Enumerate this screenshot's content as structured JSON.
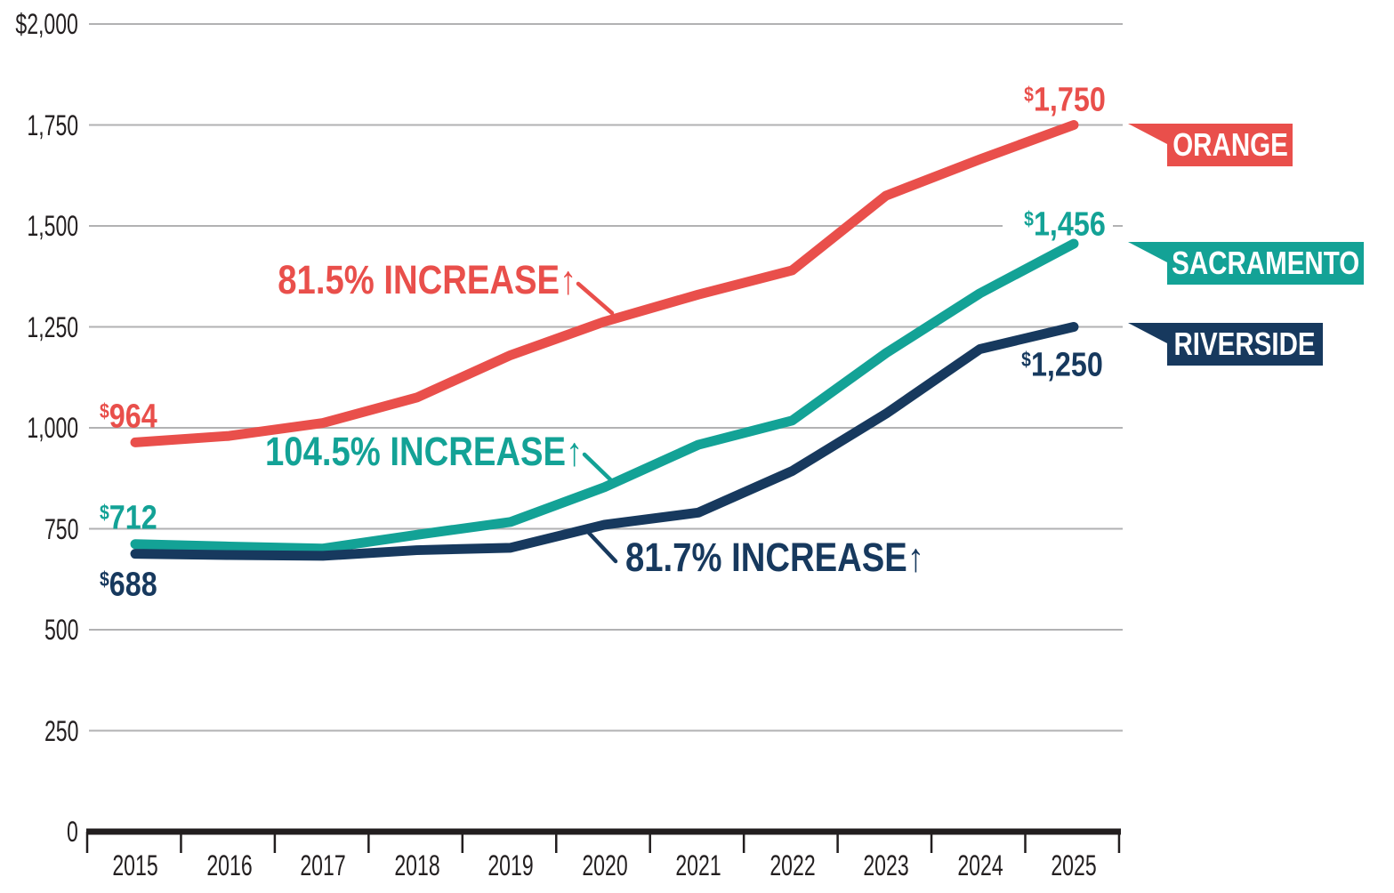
{
  "chart_data": {
    "type": "line",
    "title": "",
    "categories": [
      "2015",
      "2016",
      "2017",
      "2018",
      "2019",
      "2020",
      "2021",
      "2022",
      "2023",
      "2024",
      "2025"
    ],
    "series": [
      {
        "name": "ORANGE",
        "color": "#e94f4b",
        "values": [
          964,
          980,
          1012,
          1075,
          1180,
          1263,
          1330,
          1390,
          1575,
          1665,
          1750
        ],
        "start_label": {
          "symbol": "$",
          "amount": "964"
        },
        "end_label": {
          "symbol": "$",
          "amount": "1,750"
        },
        "increase_label": "81.5% INCREASE↑"
      },
      {
        "name": "SACRAMENTO",
        "color": "#13a296",
        "values": [
          712,
          706,
          701,
          735,
          767,
          853,
          958,
          1018,
          1185,
          1333,
          1456
        ],
        "start_label": {
          "symbol": "$",
          "amount": "712"
        },
        "end_label": {
          "symbol": "$",
          "amount": "1,456"
        },
        "increase_label": "104.5% INCREASE↑"
      },
      {
        "name": "RIVERSIDE",
        "color": "#17395e",
        "values": [
          688,
          685,
          683,
          697,
          703,
          760,
          790,
          893,
          1035,
          1195,
          1250
        ],
        "start_label": {
          "symbol": "$",
          "amount": "688"
        },
        "end_label": {
          "symbol": "$",
          "amount": "1,250"
        },
        "increase_label": "81.7% INCREASE↑"
      }
    ],
    "yaxis": {
      "range": [
        0,
        2000
      ],
      "tick_values": [
        0,
        250,
        500,
        750,
        1000,
        1250,
        1500,
        1750,
        2000
      ],
      "tick_labels": [
        "0",
        "250",
        "500",
        "750",
        "1,000",
        "1,250",
        "1,500",
        "1,750",
        "$2,000"
      ]
    },
    "grid": true,
    "legend_position": "right-flags"
  },
  "colors": {
    "gridline": "#b2b2b3",
    "axis": "#221e1f",
    "axis_text": "#231f20",
    "background": "#ffffff"
  }
}
